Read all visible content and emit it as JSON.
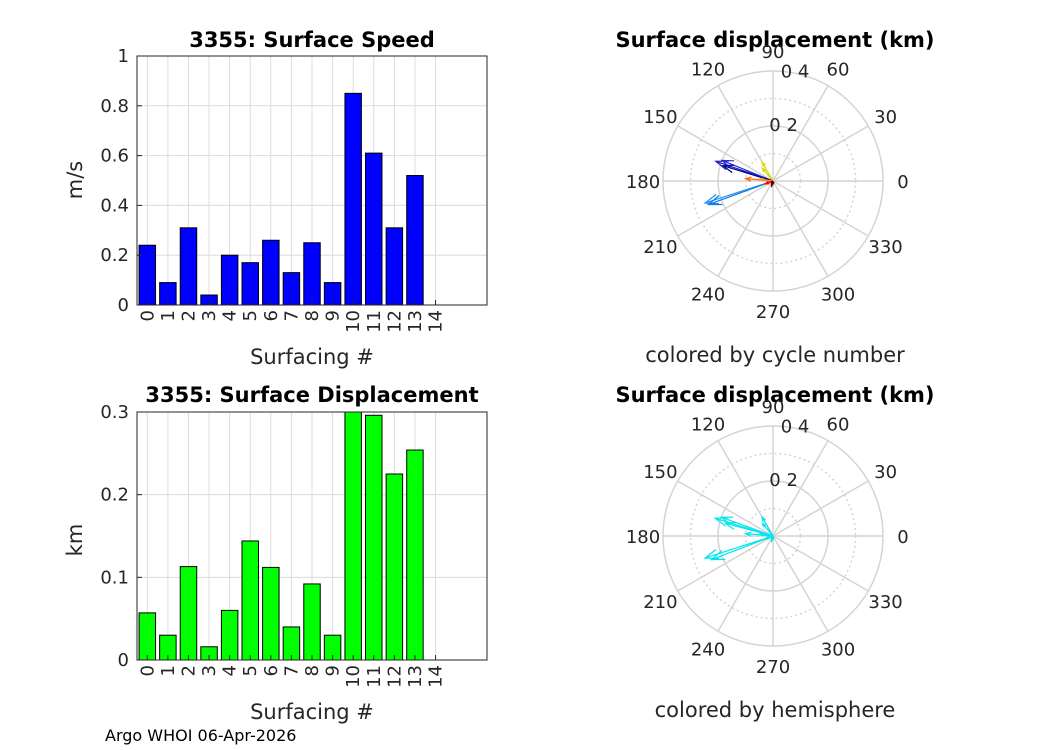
{
  "chart_data": [
    {
      "type": "bar",
      "title": "3355: Surface Speed",
      "xlabel": "Surfacing #",
      "ylabel": "m/s",
      "categories": [
        "0",
        "1",
        "2",
        "3",
        "4",
        "5",
        "6",
        "7",
        "8",
        "9",
        "10",
        "11",
        "12",
        "13",
        "14"
      ],
      "values": [
        0.24,
        0.09,
        0.31,
        0.04,
        0.2,
        0.17,
        0.26,
        0.13,
        0.25,
        0.09,
        0.85,
        0.61,
        0.31,
        0.52,
        null
      ],
      "ylim": [
        0,
        1
      ],
      "yticks": [
        "0",
        "0.2",
        "0.4",
        "0.6",
        "0.8",
        "1"
      ],
      "color": "#0000ff",
      "grid": true
    },
    {
      "type": "bar",
      "title": "3355: Surface Displacement",
      "xlabel": "Surfacing #",
      "ylabel": "km",
      "categories": [
        "0",
        "1",
        "2",
        "3",
        "4",
        "5",
        "6",
        "7",
        "8",
        "9",
        "10",
        "11",
        "12",
        "13",
        "14"
      ],
      "values": [
        0.057,
        0.03,
        0.113,
        0.016,
        0.06,
        0.144,
        0.112,
        0.04,
        0.092,
        0.03,
        0.308,
        0.296,
        0.225,
        0.254,
        null
      ],
      "ylim": [
        0,
        0.3
      ],
      "yticks": [
        "0",
        "0.1",
        "0.2",
        "0.3"
      ],
      "color": "#00ff00",
      "grid": true
    },
    {
      "type": "polar",
      "title": "Surface displacement (km)",
      "subtitle": "colored by cycle number",
      "angle_labels": [
        "0",
        "30",
        "60",
        "90",
        "120",
        "150",
        "180",
        "210",
        "240",
        "270",
        "300",
        "330"
      ],
      "radial_ticks": [
        "0.2",
        "0.4"
      ],
      "rmax": 0.4,
      "vectors": [
        {
          "angle": 161,
          "r": 0.22,
          "color": "#1f1fb4"
        },
        {
          "angle": 158,
          "r": 0.2,
          "color": "#2a2ad0"
        },
        {
          "angle": 163,
          "r": 0.19,
          "color": "#0000a0"
        },
        {
          "angle": 198,
          "r": 0.26,
          "color": "#1e90ff"
        },
        {
          "angle": 200,
          "r": 0.25,
          "color": "#0c7be0"
        },
        {
          "angle": 120,
          "r": 0.08,
          "color": "#e0e000"
        },
        {
          "angle": 130,
          "r": 0.06,
          "color": "#d4d400"
        },
        {
          "angle": 175,
          "r": 0.1,
          "color": "#ff6a00"
        },
        {
          "angle": 172,
          "r": 0.05,
          "color": "#ff9a00"
        },
        {
          "angle": 200,
          "r": 0.03,
          "color": "#ff0000"
        },
        {
          "angle": 255,
          "r": 0.02,
          "color": "#c00000"
        },
        {
          "angle": 250,
          "r": 0.015,
          "color": "#600000"
        }
      ]
    },
    {
      "type": "polar",
      "title": "Surface displacement (km)",
      "subtitle": "colored by hemisphere",
      "angle_labels": [
        "0",
        "30",
        "60",
        "90",
        "120",
        "150",
        "180",
        "210",
        "240",
        "270",
        "300",
        "330"
      ],
      "radial_ticks": [
        "0.2",
        "0.4"
      ],
      "rmax": 0.4,
      "vectors": [
        {
          "angle": 163,
          "r": 0.22,
          "color": "#00e5ee"
        },
        {
          "angle": 160,
          "r": 0.2,
          "color": "#00e5ee"
        },
        {
          "angle": 165,
          "r": 0.18,
          "color": "#00e5ee"
        },
        {
          "angle": 198,
          "r": 0.26,
          "color": "#00e5ee"
        },
        {
          "angle": 201,
          "r": 0.24,
          "color": "#00e5ee"
        },
        {
          "angle": 120,
          "r": 0.08,
          "color": "#00e5ee"
        },
        {
          "angle": 130,
          "r": 0.06,
          "color": "#00e5ee"
        },
        {
          "angle": 175,
          "r": 0.1,
          "color": "#00e5ee"
        },
        {
          "angle": 172,
          "r": 0.05,
          "color": "#00e5ee"
        },
        {
          "angle": 200,
          "r": 0.03,
          "color": "#00e5ee"
        },
        {
          "angle": 255,
          "r": 0.02,
          "color": "#00e5ee"
        },
        {
          "angle": 250,
          "r": 0.015,
          "color": "#00e5ee"
        }
      ]
    }
  ],
  "footer": "Argo WHOI 06-Apr-2026"
}
